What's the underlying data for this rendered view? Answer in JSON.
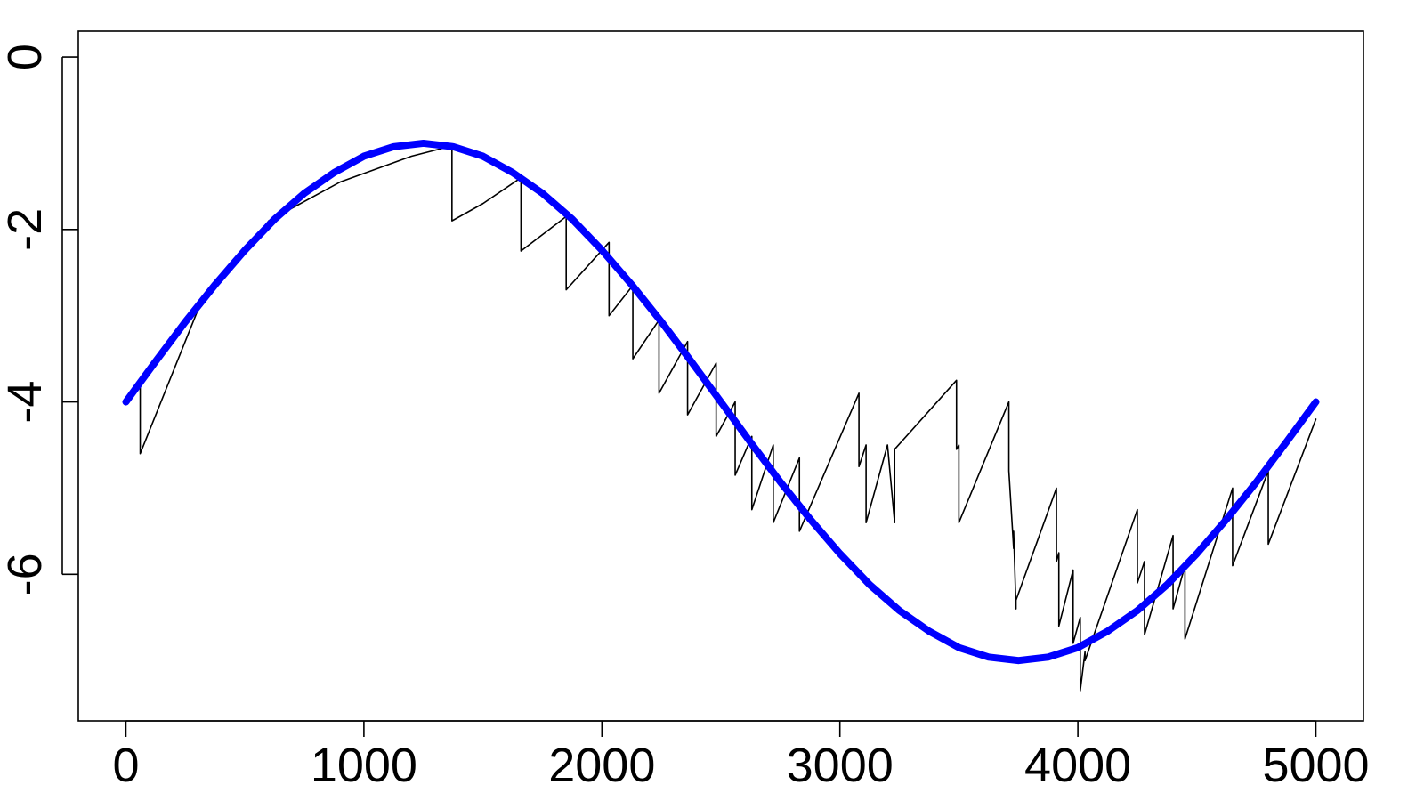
{
  "chart_data": {
    "type": "line",
    "title": "",
    "xlabel": "",
    "ylabel": "",
    "xlim": [
      -200,
      5200
    ],
    "ylim": [
      -7.7,
      0.3
    ],
    "x_ticks": [
      0,
      1000,
      2000,
      3000,
      4000,
      5000
    ],
    "x_tick_labels": [
      "0",
      "1000",
      "2000",
      "3000",
      "4000",
      "5000"
    ],
    "y_ticks": [
      0,
      -2,
      -4,
      -6
    ],
    "y_tick_labels": [
      "0",
      "-2",
      "-4",
      "-6"
    ],
    "grid": false,
    "legend": "none",
    "series": [
      {
        "style": "smooth-thick",
        "color": "#0000ff",
        "x": [
          0,
          125,
          250,
          375,
          500,
          625,
          750,
          875,
          1000,
          1125,
          1250,
          1375,
          1500,
          1625,
          1750,
          1875,
          2000,
          2125,
          2250,
          2375,
          2500,
          2625,
          2750,
          2875,
          3000,
          3125,
          3250,
          3375,
          3500,
          3625,
          3750,
          3875,
          4000,
          4125,
          4250,
          4375,
          4500,
          4625,
          4750,
          4875,
          5000
        ],
        "y": [
          -4.0,
          -3.53,
          -3.07,
          -2.64,
          -2.24,
          -1.88,
          -1.58,
          -1.34,
          -1.15,
          -1.04,
          -1.0,
          -1.04,
          -1.15,
          -1.34,
          -1.58,
          -1.88,
          -2.24,
          -2.64,
          -3.07,
          -3.53,
          -4.0,
          -4.47,
          -4.93,
          -5.36,
          -5.76,
          -6.12,
          -6.42,
          -6.66,
          -6.85,
          -6.96,
          -7.0,
          -6.96,
          -6.85,
          -6.66,
          -6.42,
          -6.12,
          -5.76,
          -5.36,
          -4.93,
          -4.47,
          -4.0
        ]
      },
      {
        "style": "thin",
        "color": "#000000",
        "x": [
          0,
          60,
          60,
          300,
          600,
          900,
          1200,
          1370,
          1370,
          1500,
          1660,
          1660,
          1850,
          1850,
          2030,
          2030,
          2130,
          2130,
          2240,
          2240,
          2360,
          2360,
          2480,
          2480,
          2560,
          2560,
          2630,
          2630,
          2720,
          2720,
          2830,
          2830,
          3080,
          3080,
          3110,
          3110,
          3200,
          3230,
          3230,
          3490,
          3490,
          3500,
          3500,
          3710,
          3710,
          3730,
          3730,
          3740,
          3740,
          3910,
          3910,
          3920,
          3920,
          3980,
          3980,
          4010,
          4010,
          4030,
          4030,
          4250,
          4250,
          4280,
          4280,
          4400,
          4400,
          4450,
          4450,
          4650,
          4650,
          4800,
          4800,
          5000
        ],
        "y": [
          -4.0,
          -3.75,
          -4.6,
          -2.95,
          -1.9,
          -1.45,
          -1.15,
          -1.03,
          -1.9,
          -1.7,
          -1.4,
          -2.25,
          -1.85,
          -2.7,
          -2.15,
          -3.0,
          -2.65,
          -3.5,
          -3.05,
          -3.9,
          -3.3,
          -4.15,
          -3.55,
          -4.4,
          -4.0,
          -4.85,
          -4.4,
          -5.25,
          -4.5,
          -5.4,
          -4.65,
          -5.5,
          -3.9,
          -4.75,
          -4.5,
          -5.4,
          -4.5,
          -5.4,
          -4.55,
          -3.75,
          -4.55,
          -4.5,
          -5.4,
          -4.0,
          -4.8,
          -5.7,
          -5.5,
          -6.4,
          -6.3,
          -5.0,
          -5.85,
          -5.75,
          -6.6,
          -5.95,
          -6.8,
          -6.5,
          -7.35,
          -6.9,
          -7.0,
          -5.25,
          -6.1,
          -5.85,
          -6.7,
          -5.55,
          -6.4,
          -5.9,
          -6.75,
          -5.0,
          -5.9,
          -4.8,
          -5.65,
          -4.2
        ]
      }
    ]
  }
}
